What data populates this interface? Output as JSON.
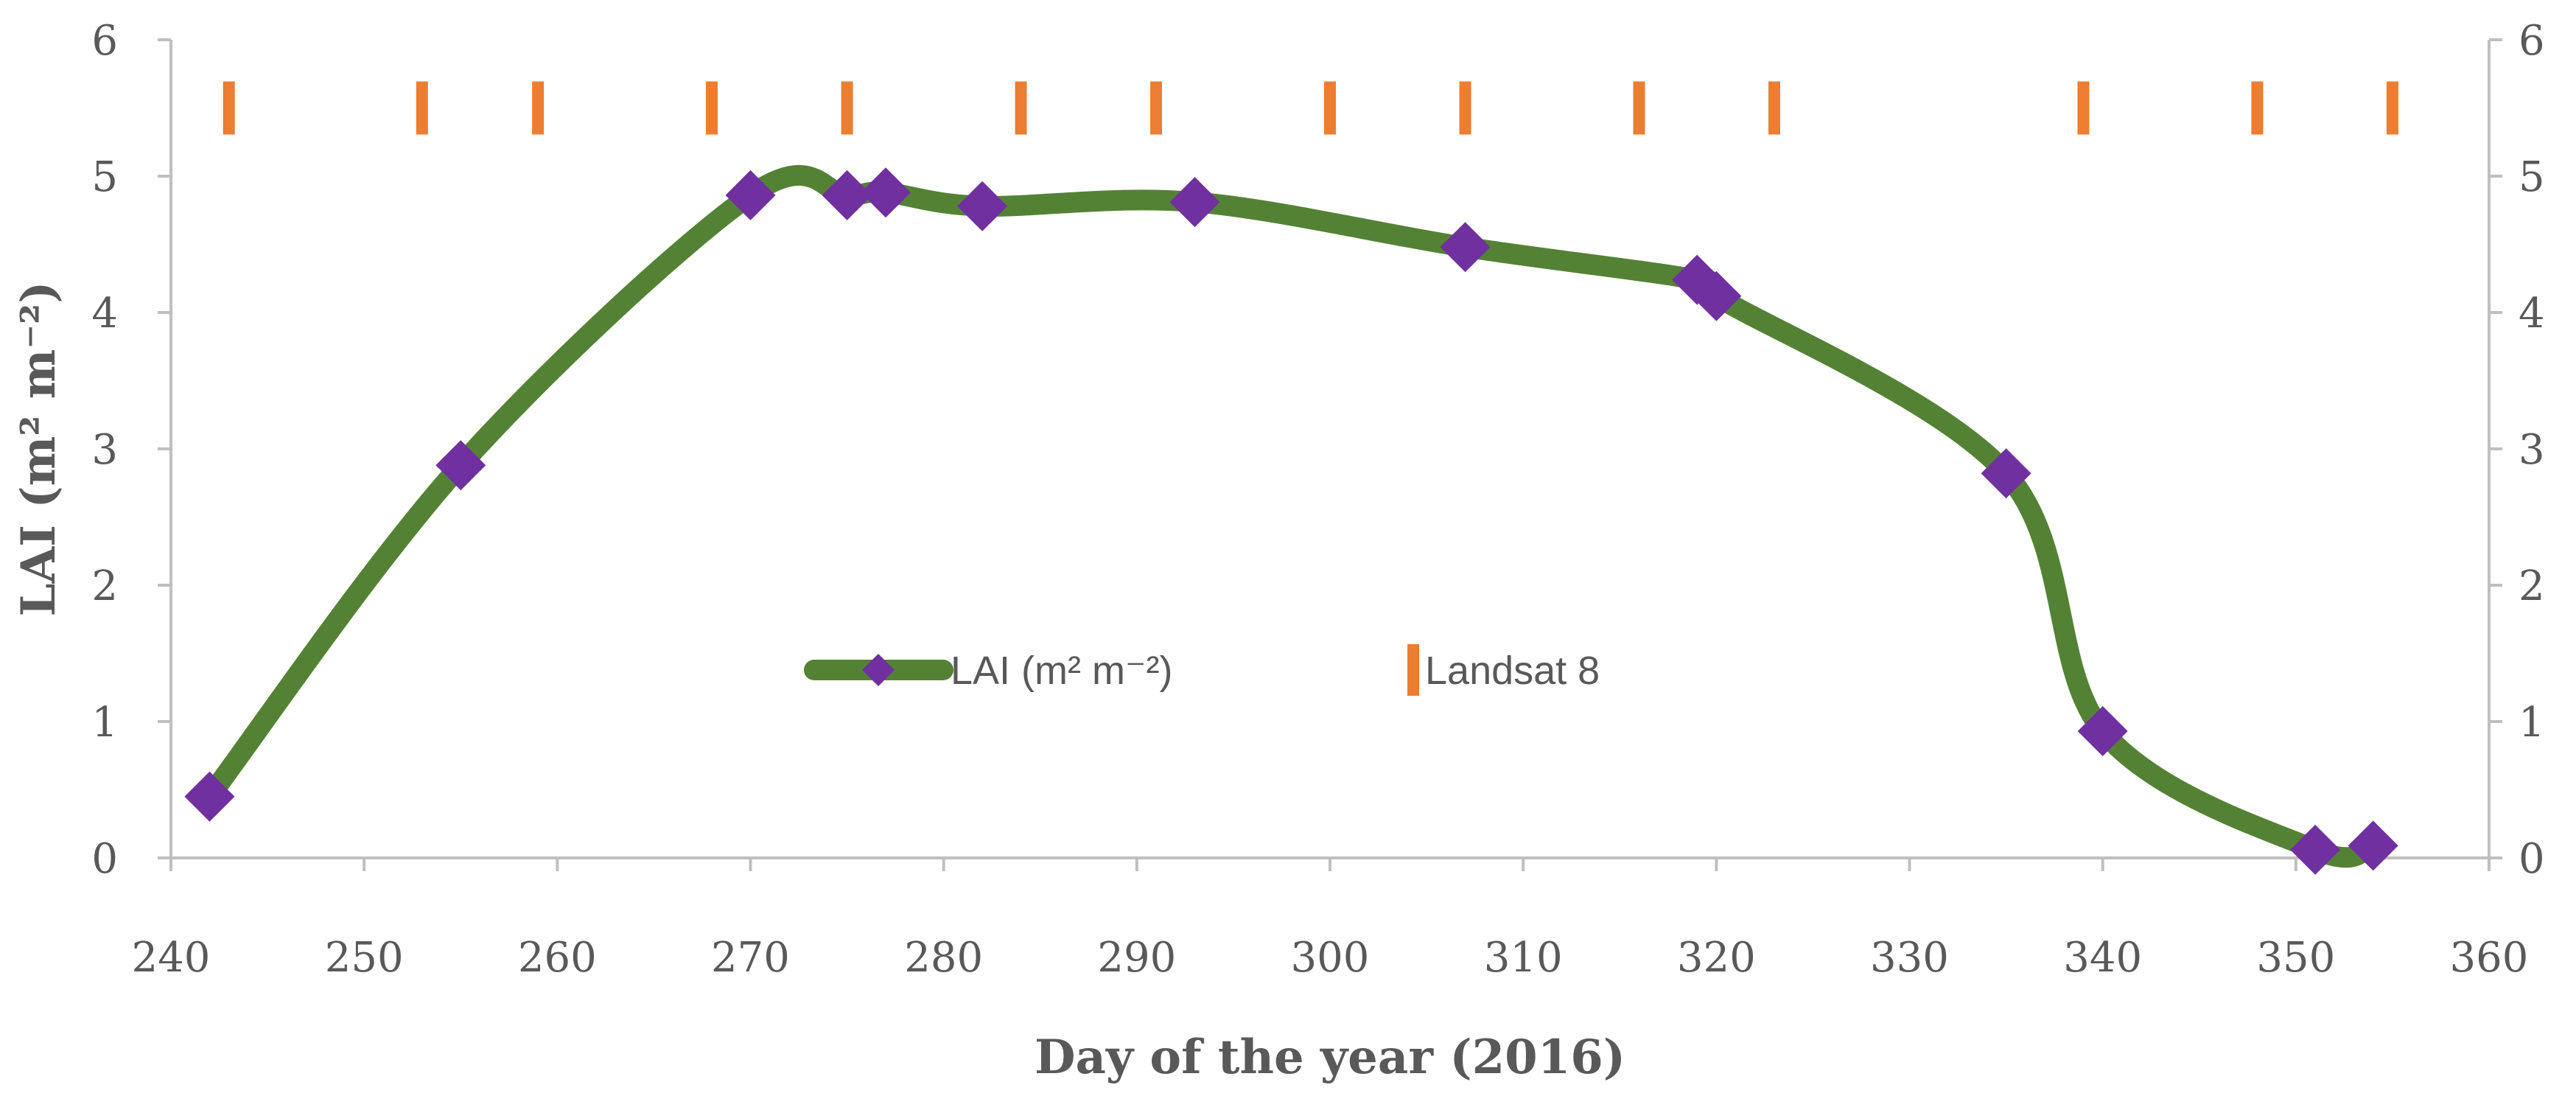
{
  "chart_data": {
    "type": "line",
    "title": "",
    "xlabel": "Day of the year (2016)",
    "ylabel": "LAI (m² m⁻²)",
    "xlim": [
      240,
      360
    ],
    "ylim": [
      0,
      6
    ],
    "xticks": [
      240,
      250,
      260,
      270,
      280,
      290,
      300,
      310,
      320,
      330,
      340,
      350,
      360
    ],
    "yticks": [
      0,
      1,
      2,
      3,
      4,
      5,
      6
    ],
    "y2ticks": [
      0,
      1,
      2,
      3,
      4,
      5,
      6
    ],
    "grid": false,
    "legend_position": "center",
    "series": [
      {
        "name": "LAI (m² m⁻²)",
        "type": "line",
        "smooth": true,
        "marker": "diamond",
        "line_color": "#548235",
        "marker_color": "#7030A0",
        "x": [
          242,
          255,
          270,
          275,
          277,
          282,
          293,
          307,
          319,
          320,
          335,
          340,
          351,
          354
        ],
        "y": [
          0.45,
          2.88,
          4.86,
          4.86,
          4.88,
          4.78,
          4.81,
          4.48,
          4.24,
          4.12,
          2.82,
          0.93,
          0.06,
          0.09
        ]
      },
      {
        "name": "Landsat 8",
        "type": "event_marks",
        "marker": "vertical-bar",
        "color": "#ED7D31",
        "y_level": 5.5,
        "x": [
          243,
          253,
          259,
          268,
          275,
          284,
          291,
          300,
          307,
          316,
          323,
          339,
          348,
          355
        ]
      }
    ]
  }
}
